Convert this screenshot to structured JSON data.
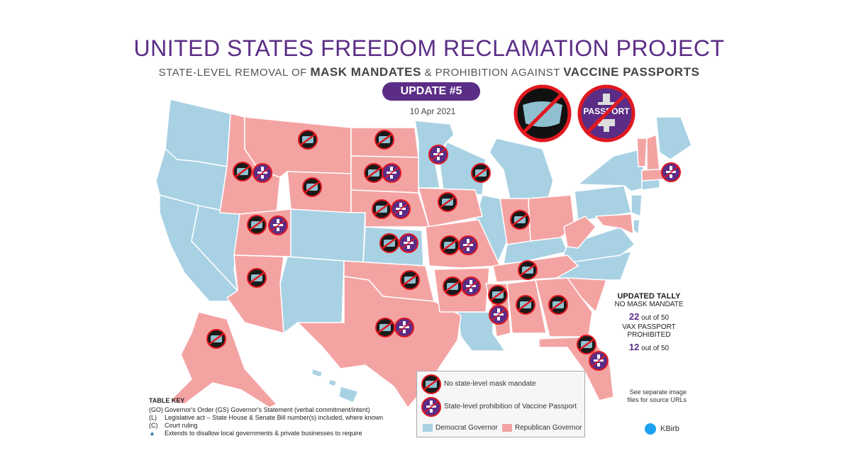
{
  "header": {
    "title": "UNITED STATES FREEDOM RECLAMATION PROJECT",
    "subtitle_pre": "STATE-LEVEL  REMOVAL  OF ",
    "subtitle_b1": "MASK MANDATES",
    "subtitle_mid": " & PROHIBITION  AGAINST ",
    "subtitle_b2": "VACCINE PASSPORTS",
    "update_label": "UPDATE #5",
    "date": "10 Apr 2021"
  },
  "passport_icon_label": "PASSPORT",
  "colors": {
    "democrat": "#a9d1e4",
    "republican": "#f4a3a3",
    "accent": "#5b2d86",
    "prohibit_ring": "#e0181f"
  },
  "tally": {
    "heading": "UPDATED TALLY",
    "mask_label": "NO MASK MANDATE",
    "mask_count": "22",
    "mask_of": "out of 50",
    "passport_label": "VAX PASSPORT PROHIBITED",
    "passport_count": "12",
    "passport_of": "out of 50"
  },
  "legend": {
    "mask": "No state-level mask mandate",
    "passport": "State-level prohibition of Vaccine Passport",
    "democrat": "Democrat Governor",
    "republican": "Republican Governor"
  },
  "table_key": {
    "heading": "TABLE KEY",
    "rows": [
      {
        "key": "(GO)",
        "text": "Governor's Order  (GS) Governor's Statement (verbal commitment/intent)"
      },
      {
        "key": "(L)",
        "text": "Legislative act – State House & Senate Bill number(s) included, where known"
      },
      {
        "key": "(C)",
        "text": "Court ruling"
      },
      {
        "key": "▲",
        "text": "Extends to disallow local governments & private businesses to require"
      }
    ]
  },
  "source_note": "See separate image files for source URLs",
  "twitter_handle": "KBirb",
  "map_data": {
    "democrat_states": [
      "WA",
      "OR",
      "CA",
      "NV",
      "CO",
      "NM",
      "MN",
      "WI",
      "IL",
      "MI",
      "KS",
      "KY",
      "LA",
      "NC",
      "PA",
      "VA",
      "NY",
      "NJ",
      "DE",
      "CT",
      "RI",
      "ME",
      "HI"
    ],
    "mask_icon_states": [
      "ID",
      "MT",
      "WY",
      "ND",
      "SD",
      "UT",
      "AZ",
      "NE",
      "KS",
      "IA",
      "MO",
      "OK",
      "TX",
      "AR",
      "MS",
      "AL",
      "GA",
      "TN",
      "IN",
      "FL",
      "AK",
      "TX2"
    ],
    "passport_icon_states": [
      "ID",
      "UT",
      "SD",
      "NE",
      "KS",
      "MO",
      "AR",
      "MS",
      "TX",
      "MN",
      "MA",
      "FL"
    ]
  }
}
